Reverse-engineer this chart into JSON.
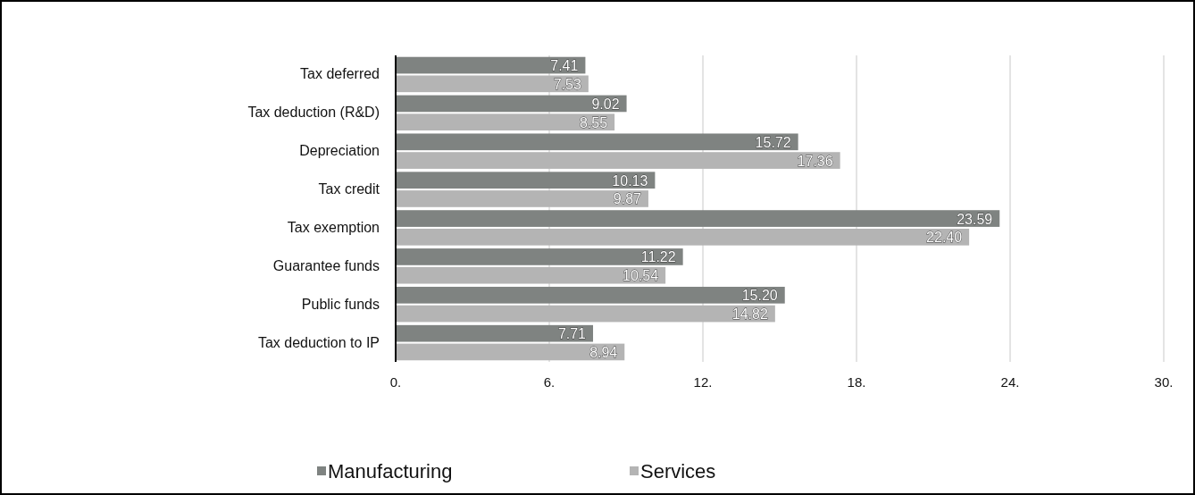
{
  "chart_data": {
    "type": "bar",
    "orientation": "horizontal",
    "categories": [
      "Tax deferred",
      "Tax deduction (R&D)",
      "Depreciation",
      "Tax credit",
      "Tax exemption",
      "Guarantee funds",
      "Public funds",
      "Tax deduction to IP"
    ],
    "series": [
      {
        "name": "Manufacturing",
        "color": "#7f8381",
        "values": [
          7.41,
          9.02,
          15.72,
          10.13,
          23.59,
          11.22,
          15.2,
          7.71
        ],
        "value_labels": [
          "7.41",
          "9.02",
          "15.72",
          "10.13",
          "23.59",
          "11.22",
          "15.20",
          "7.71"
        ]
      },
      {
        "name": "Services",
        "color": "#b4b4b4",
        "values": [
          7.53,
          8.55,
          17.36,
          9.87,
          22.4,
          10.54,
          14.82,
          8.94
        ],
        "value_labels": [
          "7.53",
          "8.55",
          "17.36",
          "9.87",
          "22.40",
          "10.54",
          "14.82",
          "8.94"
        ]
      }
    ],
    "xlim": [
      0,
      30
    ],
    "xticks": [
      {
        "value": 0,
        "label": "0."
      },
      {
        "value": 6,
        "label": "6."
      },
      {
        "value": 12,
        "label": "12."
      },
      {
        "value": 18,
        "label": "18."
      },
      {
        "value": 24,
        "label": "24."
      },
      {
        "value": 30,
        "label": "30."
      }
    ],
    "grid": "x",
    "legend": "bottom"
  }
}
